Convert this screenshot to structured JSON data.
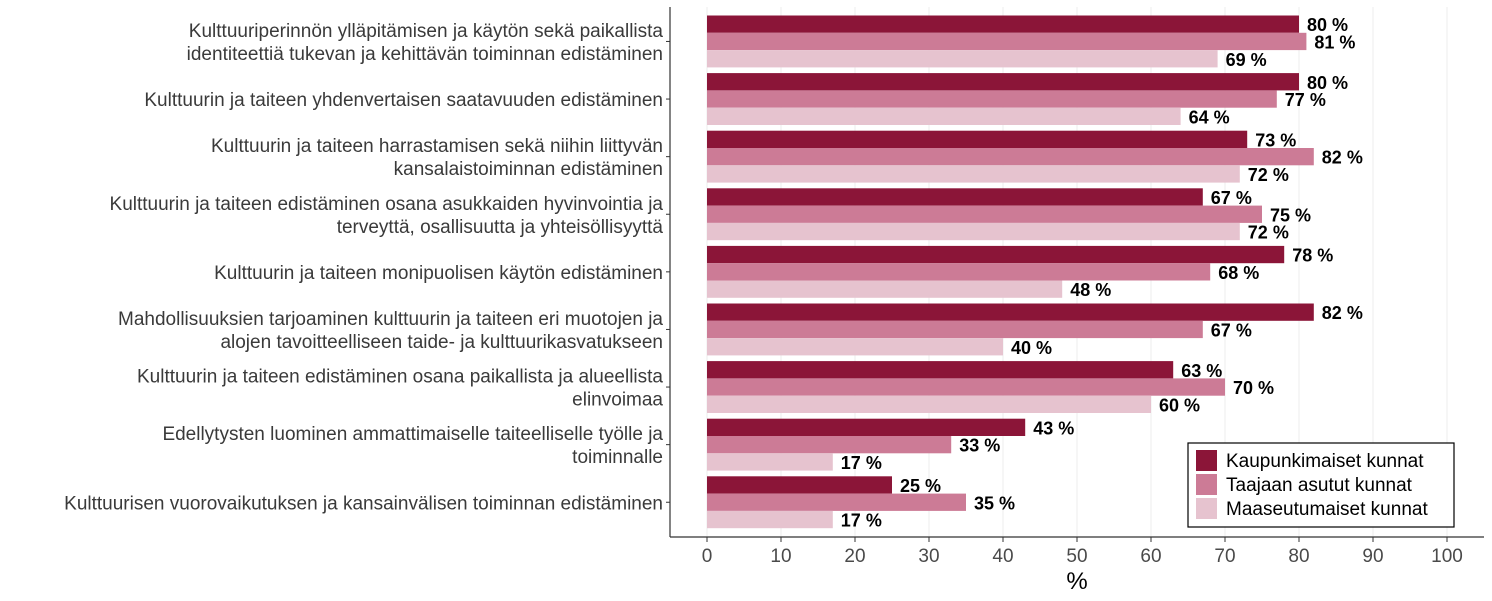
{
  "chart_data": {
    "type": "bar",
    "orientation": "horizontal",
    "categories": [
      [
        "Kulttuuriperinnön ylläpitämisen ja käytön sekä paikallista",
        "identiteettiä tukevan ja kehittävän toiminnan edistäminen"
      ],
      [
        "Kulttuurin ja taiteen yhdenvertaisen saatavuuden edistäminen"
      ],
      [
        "Kulttuurin ja taiteen harrastamisen sekä niihin liittyvän",
        "kansalaistoiminnan edistäminen"
      ],
      [
        "Kulttuurin ja taiteen edistäminen osana asukkaiden hyvinvointia ja",
        "terveyttä, osallisuutta ja yhteisöllisyyttä"
      ],
      [
        "Kulttuurin ja taiteen monipuolisen käytön edistäminen"
      ],
      [
        "Mahdollisuuksien tarjoaminen kulttuurin ja taiteen eri muotojen ja",
        "alojen tavoitteelliseen taide- ja kulttuurikasvatukseen"
      ],
      [
        "Kulttuurin ja taiteen edistäminen osana paikallista ja alueellista",
        "elinvoimaa"
      ],
      [
        "Edellytysten luominen ammattimaiselle taiteelliselle työlle ja",
        "toiminnalle"
      ],
      [
        "Kulttuurisen vuorovaikutuksen ja kansainvälisen toiminnan edistäminen"
      ]
    ],
    "series": [
      {
        "name": "Kaupunkimaiset kunnat",
        "color": "#8b1538",
        "values": [
          80,
          80,
          73,
          67,
          78,
          82,
          63,
          43,
          25
        ]
      },
      {
        "name": "Taajaan asutut kunnat",
        "color": "#cc7b96",
        "values": [
          81,
          77,
          82,
          75,
          68,
          67,
          70,
          33,
          35
        ]
      },
      {
        "name": "Maaseutumaiset kunnat",
        "color": "#e6c3cf",
        "values": [
          69,
          64,
          72,
          72,
          48,
          40,
          60,
          17,
          17
        ]
      }
    ],
    "value_suffix": " %",
    "xlabel": "%",
    "xlim": [
      -5,
      105
    ],
    "xticks": [
      0,
      10,
      20,
      30,
      40,
      50,
      60,
      70,
      80,
      90,
      100
    ],
    "grid": true,
    "legend_position": "bottom-right"
  }
}
